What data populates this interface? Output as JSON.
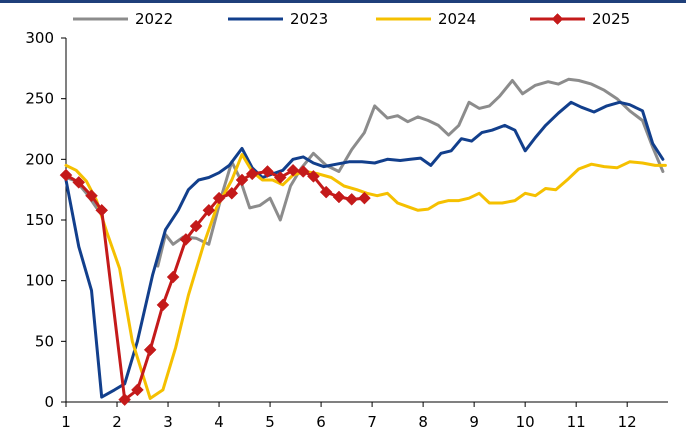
{
  "chart_data": {
    "type": "line",
    "title": "",
    "xlabel": "",
    "ylabel": "",
    "xlim": [
      1,
      12.8
    ],
    "ylim": [
      0,
      300
    ],
    "x_ticks": [
      1,
      2,
      3,
      4,
      5,
      6,
      7,
      8,
      9,
      10,
      11,
      12
    ],
    "y_ticks": [
      0,
      50,
      100,
      150,
      200,
      250,
      300
    ],
    "x_tick_labels": [
      "1",
      "2",
      "3",
      "4",
      "5",
      "6",
      "7",
      "8",
      "9",
      "10",
      "11",
      "12"
    ],
    "y_tick_labels": [
      "0",
      "50",
      "100",
      "150",
      "200",
      "250",
      "300"
    ],
    "grid": false,
    "legend_position": "top",
    "series": [
      {
        "name": "2022",
        "color": "#8c8c8c",
        "marker": "none",
        "segments": [
          [
            [
              1.0,
              185
            ],
            [
              1.2,
              182
            ],
            [
              1.4,
              172
            ],
            [
              1.6,
              160
            ]
          ],
          [
            [
              2.8,
              112
            ],
            [
              2.95,
              138
            ],
            [
              3.1,
              130
            ],
            [
              3.3,
              136
            ],
            [
              3.55,
              135
            ],
            [
              3.8,
              130
            ],
            [
              4.05,
              170
            ],
            [
              4.25,
              198
            ],
            [
              4.4,
              185
            ],
            [
              4.6,
              160
            ],
            [
              4.8,
              162
            ],
            [
              5.0,
              168
            ],
            [
              5.2,
              150
            ],
            [
              5.4,
              178
            ],
            [
              5.6,
              192
            ],
            [
              5.85,
              205
            ],
            [
              6.1,
              195
            ],
            [
              6.35,
              190
            ],
            [
              6.6,
              208
            ],
            [
              6.85,
              222
            ],
            [
              7.05,
              244
            ],
            [
              7.3,
              234
            ],
            [
              7.5,
              236
            ],
            [
              7.7,
              231
            ],
            [
              7.9,
              235
            ],
            [
              8.1,
              232
            ],
            [
              8.3,
              228
            ],
            [
              8.5,
              220
            ],
            [
              8.7,
              228
            ],
            [
              8.9,
              247
            ],
            [
              9.1,
              242
            ],
            [
              9.3,
              244
            ],
            [
              9.5,
              252
            ],
            [
              9.75,
              265
            ],
            [
              9.95,
              254
            ],
            [
              10.2,
              261
            ],
            [
              10.45,
              264
            ],
            [
              10.65,
              262
            ],
            [
              10.85,
              266
            ],
            [
              11.05,
              265
            ],
            [
              11.3,
              262
            ],
            [
              11.55,
              257
            ],
            [
              11.8,
              250
            ],
            [
              12.05,
              240
            ],
            [
              12.3,
              232
            ],
            [
              12.5,
              210
            ],
            [
              12.7,
              190
            ]
          ]
        ]
      },
      {
        "name": "2023",
        "color": "#123f8c",
        "marker": "none",
        "segments": [
          [
            [
              1.0,
              183
            ],
            [
              1.25,
              128
            ],
            [
              1.5,
              92
            ],
            [
              1.7,
              4
            ],
            [
              1.95,
              10
            ],
            [
              2.15,
              15
            ],
            [
              2.4,
              50
            ],
            [
              2.7,
              105
            ],
            [
              2.95,
              142
            ],
            [
              3.2,
              158
            ],
            [
              3.4,
              175
            ],
            [
              3.6,
              183
            ],
            [
              3.8,
              185
            ],
            [
              4.0,
              189
            ],
            [
              4.2,
              195
            ],
            [
              4.45,
              209
            ],
            [
              4.65,
              193
            ],
            [
              4.85,
              185
            ],
            [
              5.05,
              188
            ],
            [
              5.25,
              191
            ],
            [
              5.45,
              200
            ],
            [
              5.65,
              202
            ],
            [
              5.85,
              197
            ],
            [
              6.05,
              194
            ],
            [
              6.3,
              196
            ],
            [
              6.55,
              198
            ],
            [
              6.8,
              198
            ],
            [
              7.05,
              197
            ],
            [
              7.3,
              200
            ],
            [
              7.55,
              199
            ],
            [
              7.75,
              200
            ],
            [
              7.95,
              201
            ],
            [
              8.15,
              195
            ],
            [
              8.35,
              205
            ],
            [
              8.55,
              207
            ],
            [
              8.75,
              217
            ],
            [
              8.95,
              215
            ],
            [
              9.15,
              222
            ],
            [
              9.35,
              224
            ],
            [
              9.6,
              228
            ],
            [
              9.8,
              224
            ],
            [
              10.0,
              207
            ],
            [
              10.2,
              218
            ],
            [
              10.4,
              228
            ],
            [
              10.65,
              238
            ],
            [
              10.9,
              247
            ],
            [
              11.1,
              243
            ],
            [
              11.35,
              239
            ],
            [
              11.6,
              244
            ],
            [
              11.85,
              247
            ],
            [
              12.05,
              245
            ],
            [
              12.3,
              240
            ],
            [
              12.5,
              213
            ],
            [
              12.7,
              200
            ]
          ]
        ]
      },
      {
        "name": "2024",
        "color": "#f5c000",
        "marker": "none",
        "segments": [
          [
            [
              1.0,
              195
            ],
            [
              1.2,
              191
            ],
            [
              1.4,
              182
            ],
            [
              1.6,
              166
            ],
            [
              1.8,
              140
            ],
            [
              2.05,
              110
            ],
            [
              2.3,
              50
            ],
            [
              2.65,
              3
            ],
            [
              2.9,
              10
            ],
            [
              3.15,
              45
            ],
            [
              3.4,
              88
            ],
            [
              3.7,
              130
            ],
            [
              3.95,
              160
            ],
            [
              4.25,
              183
            ],
            [
              4.45,
              204
            ],
            [
              4.65,
              190
            ],
            [
              4.85,
              183
            ],
            [
              5.05,
              183
            ],
            [
              5.25,
              179
            ],
            [
              5.45,
              187
            ],
            [
              5.7,
              190
            ],
            [
              5.95,
              188
            ],
            [
              6.2,
              185
            ],
            [
              6.45,
              178
            ],
            [
              6.7,
              175
            ],
            [
              6.9,
              172
            ],
            [
              7.1,
              170
            ],
            [
              7.3,
              172
            ],
            [
              7.5,
              164
            ],
            [
              7.7,
              161
            ],
            [
              7.9,
              158
            ],
            [
              8.1,
              159
            ],
            [
              8.3,
              164
            ],
            [
              8.5,
              166
            ],
            [
              8.7,
              166
            ],
            [
              8.9,
              168
            ],
            [
              9.1,
              172
            ],
            [
              9.3,
              164
            ],
            [
              9.55,
              164
            ],
            [
              9.8,
              166
            ],
            [
              10.0,
              172
            ],
            [
              10.2,
              170
            ],
            [
              10.4,
              176
            ],
            [
              10.6,
              175
            ],
            [
              10.85,
              184
            ],
            [
              11.05,
              192
            ],
            [
              11.3,
              196
            ],
            [
              11.55,
              194
            ],
            [
              11.8,
              193
            ],
            [
              12.05,
              198
            ],
            [
              12.3,
              197
            ],
            [
              12.55,
              195
            ],
            [
              12.75,
              195
            ]
          ]
        ]
      },
      {
        "name": "2025",
        "color": "#c41a1a",
        "marker": "diamond",
        "segments": [
          [
            [
              1.0,
              187
            ],
            [
              1.25,
              181
            ],
            [
              1.5,
              170
            ],
            [
              1.7,
              158
            ],
            [
              2.15,
              2
            ],
            [
              2.4,
              10
            ],
            [
              2.65,
              43
            ],
            [
              2.9,
              80
            ],
            [
              3.1,
              103
            ],
            [
              3.35,
              134
            ],
            [
              3.55,
              145
            ],
            [
              3.8,
              158
            ],
            [
              4.0,
              168
            ],
            [
              4.25,
              172
            ],
            [
              4.45,
              183
            ],
            [
              4.65,
              188
            ],
            [
              4.95,
              190
            ],
            [
              5.2,
              185
            ],
            [
              5.45,
              191
            ],
            [
              5.65,
              190
            ],
            [
              5.85,
              186
            ],
            [
              6.1,
              173
            ],
            [
              6.35,
              169
            ],
            [
              6.6,
              167
            ],
            [
              6.85,
              168
            ]
          ]
        ]
      }
    ]
  }
}
